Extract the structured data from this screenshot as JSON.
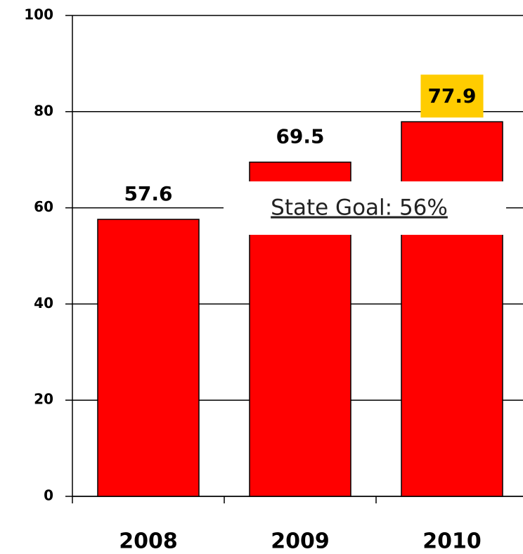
{
  "chart_data": {
    "type": "bar",
    "categories": [
      "2008",
      "2009",
      "2010"
    ],
    "values": [
      57.6,
      69.5,
      77.9
    ],
    "color": "#ff0000",
    "value_label_backgrounds": [
      "#ffffff",
      "#ffffff",
      "#ffcc00"
    ],
    "annotation": "State Goal: 56%",
    "ylim": [
      0,
      100
    ],
    "yticks": [
      0,
      20,
      40,
      60,
      80,
      100
    ],
    "grid": true
  }
}
